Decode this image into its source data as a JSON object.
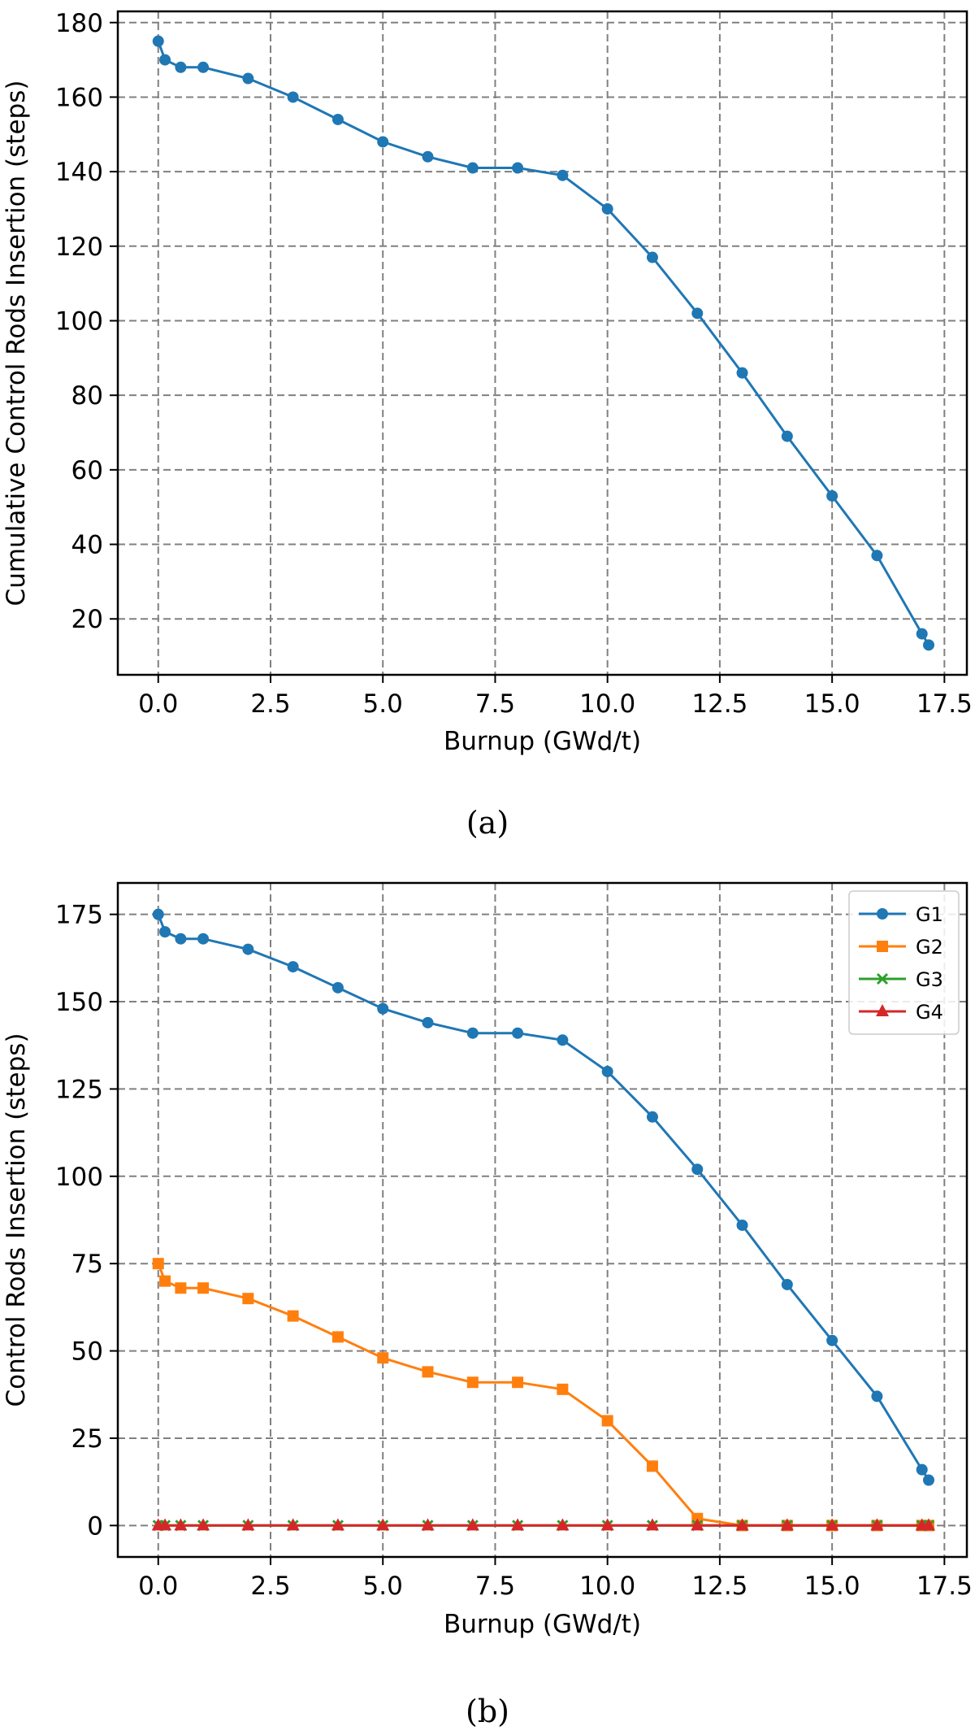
{
  "chart_data": [
    {
      "type": "line",
      "caption": "(a)",
      "title": "",
      "xlabel": "Burnup (GWd/t)",
      "ylabel": "Cumulative Control Rods Insertion (steps)",
      "xlim": [
        -0.9,
        18.0
      ],
      "ylim": [
        5,
        183
      ],
      "xticks": [
        0.0,
        2.5,
        5.0,
        7.5,
        10.0,
        12.5,
        15.0,
        17.5
      ],
      "xtick_labels": [
        "0.0",
        "2.5",
        "5.0",
        "7.5",
        "10.0",
        "12.5",
        "15.0",
        "17.5"
      ],
      "yticks": [
        20,
        40,
        60,
        80,
        100,
        120,
        140,
        160,
        180
      ],
      "ytick_labels": [
        "20",
        "40",
        "60",
        "80",
        "100",
        "120",
        "140",
        "160",
        "180"
      ],
      "grid": true,
      "legend": null,
      "series": [
        {
          "color": "#1f77b4",
          "marker": "circle",
          "x": [
            0,
            0.15,
            0.5,
            1,
            2,
            3,
            4,
            5,
            6,
            7,
            8,
            9,
            10,
            11,
            12,
            13,
            14,
            15,
            16,
            17,
            17.15
          ],
          "y": [
            175,
            170,
            168,
            168,
            165,
            160,
            154,
            148,
            144,
            141,
            141,
            139,
            130,
            117,
            102,
            86,
            69,
            53,
            37,
            16,
            13
          ]
        }
      ]
    },
    {
      "type": "line",
      "caption": "(b)",
      "title": "",
      "xlabel": "Burnup (GWd/t)",
      "ylabel": "Control Rods Insertion (steps)",
      "xlim": [
        -0.9,
        18.0
      ],
      "ylim": [
        -9,
        184
      ],
      "xticks": [
        0.0,
        2.5,
        5.0,
        7.5,
        10.0,
        12.5,
        15.0,
        17.5
      ],
      "xtick_labels": [
        "0.0",
        "2.5",
        "5.0",
        "7.5",
        "10.0",
        "12.5",
        "15.0",
        "17.5"
      ],
      "yticks": [
        0,
        25,
        50,
        75,
        100,
        125,
        150,
        175
      ],
      "ytick_labels": [
        "0",
        "25",
        "50",
        "75",
        "100",
        "125",
        "150",
        "175"
      ],
      "grid": true,
      "legend": "top-right",
      "series": [
        {
          "name": "G1",
          "color": "#1f77b4",
          "marker": "circle",
          "x": [
            0,
            0.15,
            0.5,
            1,
            2,
            3,
            4,
            5,
            6,
            7,
            8,
            9,
            10,
            11,
            12,
            13,
            14,
            15,
            16,
            17,
            17.15
          ],
          "y": [
            175,
            170,
            168,
            168,
            165,
            160,
            154,
            148,
            144,
            141,
            141,
            139,
            130,
            117,
            102,
            86,
            69,
            53,
            37,
            16,
            13
          ]
        },
        {
          "name": "G2",
          "color": "#ff7f0e",
          "marker": "square",
          "x": [
            0,
            0.15,
            0.5,
            1,
            2,
            3,
            4,
            5,
            6,
            7,
            8,
            9,
            10,
            11,
            12,
            13,
            14,
            15,
            16,
            17,
            17.15
          ],
          "y": [
            75,
            70,
            68,
            68,
            65,
            60,
            54,
            48,
            44,
            41,
            41,
            39,
            30,
            17,
            2,
            0,
            0,
            0,
            0,
            0,
            0
          ]
        },
        {
          "name": "G3",
          "color": "#2ca02c",
          "marker": "x",
          "x": [
            0,
            0.15,
            0.5,
            1,
            2,
            3,
            4,
            5,
            6,
            7,
            8,
            9,
            10,
            11,
            12,
            13,
            14,
            15,
            16,
            17,
            17.15
          ],
          "y": [
            0,
            0,
            0,
            0,
            0,
            0,
            0,
            0,
            0,
            0,
            0,
            0,
            0,
            0,
            0,
            0,
            0,
            0,
            0,
            0,
            0
          ]
        },
        {
          "name": "G4",
          "color": "#d62728",
          "marker": "triangle",
          "x": [
            0,
            0.15,
            0.5,
            1,
            2,
            3,
            4,
            5,
            6,
            7,
            8,
            9,
            10,
            11,
            12,
            13,
            14,
            15,
            16,
            17,
            17.15
          ],
          "y": [
            0,
            0,
            0,
            0,
            0,
            0,
            0,
            0,
            0,
            0,
            0,
            0,
            0,
            0,
            0,
            0,
            0,
            0,
            0,
            0,
            0
          ]
        }
      ]
    }
  ]
}
